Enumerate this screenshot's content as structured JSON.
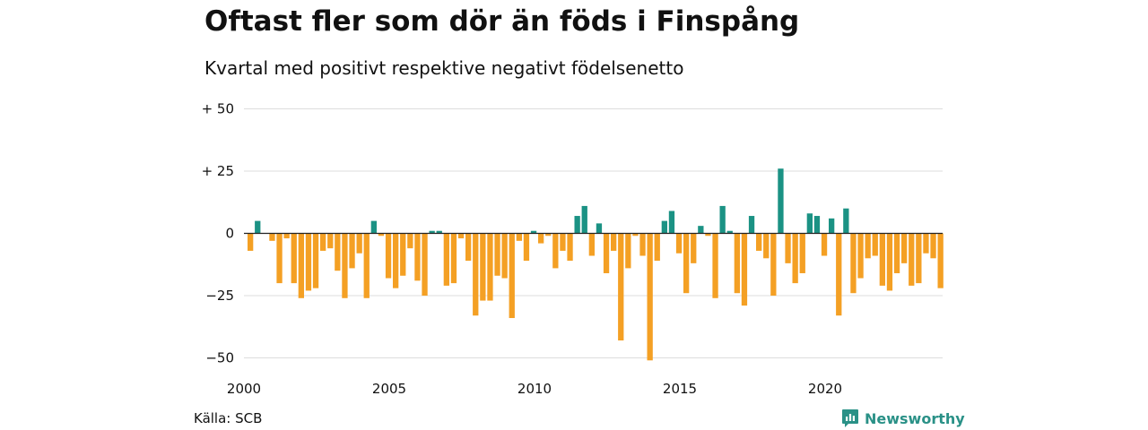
{
  "title": "Oftast fler som dör än föds i Finspång",
  "subtitle": "Kvartal med positivt respektive negativt födelsenetto",
  "source": "Källa: SCB",
  "brand": {
    "name": "Newsworthy",
    "icon": "newsworthy-logo-icon"
  },
  "colors": {
    "positive": "#1b9284",
    "negative": "#f4a024",
    "grid": "#dddddd",
    "zero": "#222222"
  },
  "chart_data": {
    "type": "bar",
    "x_start": 2000,
    "x_tick_labels": [
      "2000",
      "2005",
      "2010",
      "2015",
      "2020"
    ],
    "y_tick_labels": [
      "+ 50",
      "+ 25",
      "0",
      "−25",
      "−50"
    ],
    "y_ticks": [
      50,
      25,
      0,
      -25,
      -50
    ],
    "ylim": [
      -51,
      50
    ],
    "grid": true,
    "period": "quarter",
    "values": [
      -7,
      5,
      0,
      -3,
      -20,
      -2,
      -20,
      -26,
      -23,
      -22,
      -7,
      -6,
      -15,
      -26,
      -14,
      -8,
      -26,
      5,
      -1,
      -18,
      -22,
      -17,
      -6,
      -19,
      -25,
      1,
      1,
      -21,
      -20,
      -2,
      -11,
      -33,
      -27,
      -27,
      -17,
      -18,
      -34,
      -3,
      -11,
      1,
      -4,
      -1,
      -14,
      -7,
      -11,
      7,
      11,
      -9,
      4,
      -16,
      -7,
      -43,
      -14,
      -1,
      -9,
      -51,
      -11,
      5,
      9,
      -8,
      -24,
      -12,
      3,
      -1,
      -26,
      11,
      1,
      -24,
      -29,
      7,
      -7,
      -10,
      -25,
      26,
      -12,
      -20,
      -16,
      8,
      7,
      -9,
      6,
      -33,
      10,
      -24,
      -18,
      -10,
      -9,
      -21,
      -23,
      -16,
      -12,
      -21,
      -20,
      -8,
      -10,
      -22
    ]
  }
}
